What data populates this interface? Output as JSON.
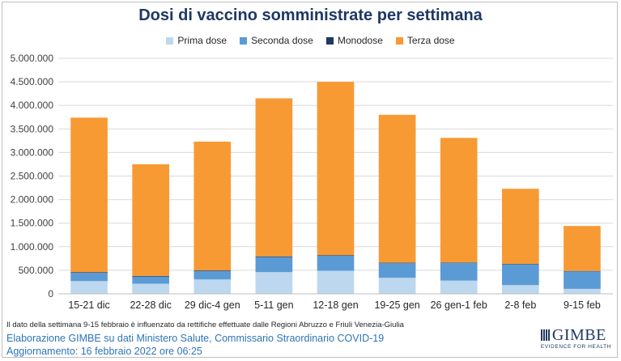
{
  "chart_data": {
    "type": "bar",
    "stacked": true,
    "title": "Dosi di vaccino somministrate per settimana",
    "categories": [
      "15-21 dic",
      "22-28 dic",
      "29 dic-4 gen",
      "5-11 gen",
      "12-18 gen",
      "19-25 gen",
      "26 gen-1 feb",
      "2-8 feb",
      "9-15 feb"
    ],
    "series": [
      {
        "name": "Prima dose",
        "color": "#bdd7ee",
        "values": [
          270000,
          215000,
          305000,
          460000,
          490000,
          340000,
          280000,
          185000,
          105000
        ]
      },
      {
        "name": "Seconda dose",
        "color": "#5b9bd5",
        "values": [
          175000,
          150000,
          175000,
          320000,
          315000,
          310000,
          375000,
          440000,
          370000
        ]
      },
      {
        "name": "Monodose",
        "color": "#1f3864",
        "values": [
          15000,
          15000,
          15000,
          15000,
          15000,
          10000,
          10000,
          10000,
          10000
        ]
      },
      {
        "name": "Terza dose",
        "color": "#f79a34",
        "values": [
          3280000,
          2370000,
          2735000,
          3355000,
          3680000,
          3140000,
          2645000,
          1595000,
          955000
        ]
      }
    ],
    "ylim": [
      0,
      5000000
    ],
    "yticks": [
      "0",
      "500.000",
      "1.000.000",
      "1.500.000",
      "2.000.000",
      "2.500.000",
      "3.000.000",
      "3.500.000",
      "4.000.000",
      "4.500.000",
      "5.000.000"
    ],
    "grid": true,
    "legend_position": "top"
  },
  "footer": {
    "note": "Il dato della settimana 9-15 febbraio è influenzato da rettifiche effettuate dalle Regioni Abruzzo e Friuli Venezia-Giulia",
    "credit": "Elaborazione GIMBE su dati Ministero Salute, Commissario Straordinario COVID-19",
    "updated": "Aggiornamento: 16 febbraio 2022 ore 06:25",
    "logo_text": "GIMBE",
    "logo_sub": "EVIDENCE FOR HEALTH"
  }
}
